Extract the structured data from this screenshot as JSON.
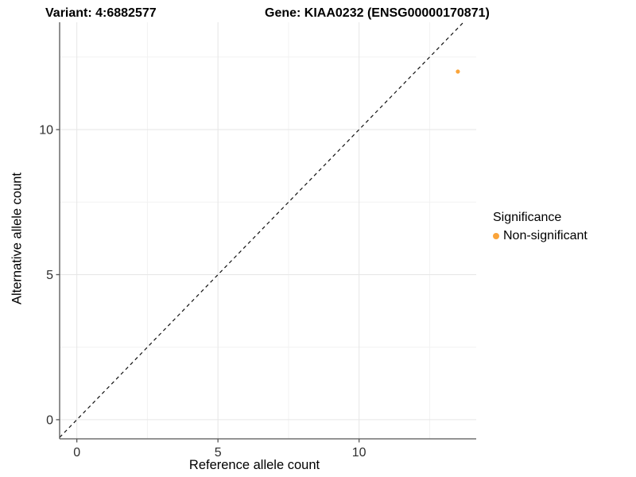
{
  "header": {
    "variant_title": "Variant: 4:6882577",
    "gene_title": "Gene: KIAA0232 (ENSG00000170871)"
  },
  "axes": {
    "x_label": "Reference allele count",
    "y_label": "Alternative allele count"
  },
  "legend": {
    "title": "Significance",
    "items": [
      {
        "label": "Non-significant",
        "color": "#FAA43A"
      }
    ]
  },
  "chart_data": {
    "type": "scatter",
    "title": "Variant: 4:6882577 / Gene: KIAA0232 (ENSG00000170871)",
    "xlabel": "Reference allele count",
    "ylabel": "Alternative allele count",
    "x_range": [
      -0.61,
      14.15
    ],
    "y_range": [
      -0.66,
      13.7
    ],
    "x_ticks": {
      "values": [
        0,
        5,
        10
      ],
      "labels": [
        "0",
        "5",
        "10"
      ]
    },
    "y_ticks": {
      "values": [
        0,
        5,
        10
      ],
      "labels": [
        "0",
        "5",
        "10"
      ]
    },
    "major_grid": [
      0,
      5,
      10
    ],
    "minor_grid": [
      2.5,
      7.5,
      12.5
    ],
    "grid": true,
    "legend_position": "right",
    "points": [
      {
        "x": 13.5,
        "y": 12,
        "series": "Non-significant"
      }
    ],
    "reference_line": {
      "kind": "identity",
      "slope": 1,
      "intercept": 0,
      "linetype": "dashed"
    },
    "colors": {
      "point": "#FAA43A",
      "grid_major": "#e6e6e6",
      "grid_minor": "#f2f2f2",
      "axis_line": "#555555",
      "tick_text": "#2e2e2e",
      "reference_line": "#111111"
    }
  }
}
